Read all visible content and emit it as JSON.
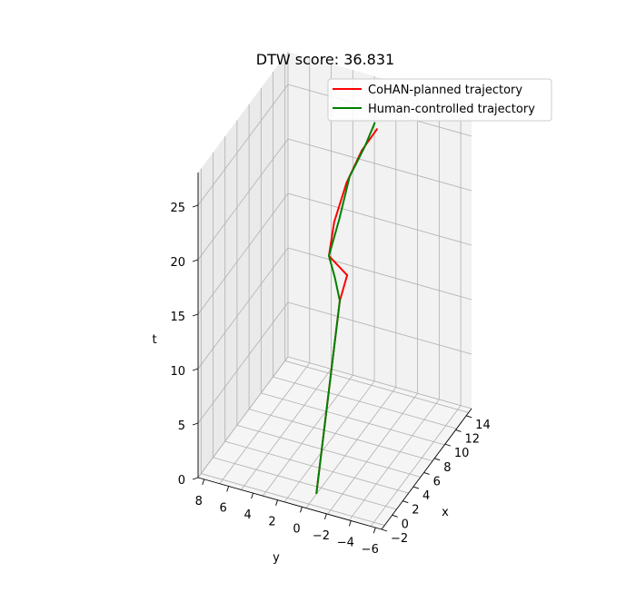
{
  "chart_data": {
    "type": "line",
    "projection": "3d",
    "title": "DTW score: 36.831",
    "xlabel": "x",
    "ylabel": "y",
    "zlabel": "t",
    "xlim": [
      -2,
      15
    ],
    "ylim": [
      -6.5,
      8.5
    ],
    "zlim": [
      0,
      28
    ],
    "x_ticks": [
      -2,
      0,
      2,
      4,
      6,
      8,
      10,
      12,
      14
    ],
    "y_ticks": [
      8,
      6,
      4,
      2,
      0,
      -2,
      -4,
      -6
    ],
    "z_ticks": [
      0,
      5,
      10,
      15,
      20,
      25
    ],
    "grid": true,
    "legend_position": "top-right",
    "series": [
      {
        "name": "CoHAN-planned trajectory",
        "color": "#ff0000",
        "points": [
          {
            "x": 0.0,
            "y": -0.3,
            "t": 0
          },
          {
            "x": 1.5,
            "y": -0.3,
            "t": 5
          },
          {
            "x": 3.0,
            "y": -0.3,
            "t": 10
          },
          {
            "x": 4.2,
            "y": -0.4,
            "t": 15
          },
          {
            "x": 4.9,
            "y": -0.7,
            "t": 17
          },
          {
            "x": 4.0,
            "y": 0.4,
            "t": 19
          },
          {
            "x": 4.3,
            "y": 0.1,
            "t": 22
          },
          {
            "x": 5.5,
            "y": -0.4,
            "t": 25
          },
          {
            "x": 7.2,
            "y": -0.9,
            "t": 27
          },
          {
            "x": 9.0,
            "y": -1.4,
            "t": 28
          }
        ]
      },
      {
        "name": "Human-controlled trajectory",
        "color": "#008000",
        "points": [
          {
            "x": 0.0,
            "y": -0.3,
            "t": 0
          },
          {
            "x": 1.5,
            "y": -0.3,
            "t": 5
          },
          {
            "x": 3.0,
            "y": -0.3,
            "t": 10
          },
          {
            "x": 4.2,
            "y": -0.4,
            "t": 15
          },
          {
            "x": 4.2,
            "y": 0.0,
            "t": 17
          },
          {
            "x": 4.0,
            "y": 0.4,
            "t": 19
          },
          {
            "x": 4.8,
            "y": -0.1,
            "t": 22
          },
          {
            "x": 6.3,
            "y": -0.3,
            "t": 25
          },
          {
            "x": 7.8,
            "y": -0.9,
            "t": 27
          },
          {
            "x": 9.0,
            "y": -1.2,
            "t": 28.5
          }
        ]
      }
    ]
  }
}
